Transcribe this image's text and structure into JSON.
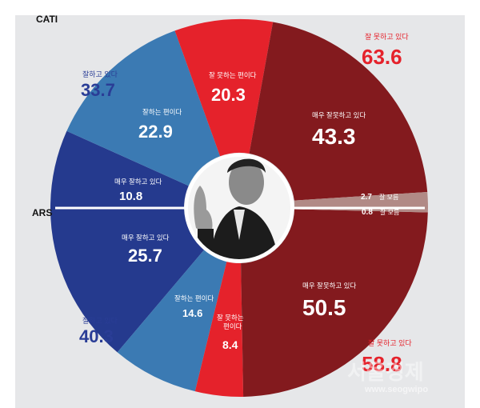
{
  "chart_data": {
    "type": "donut",
    "cati": {
      "label": "CATI",
      "segments": [
        {
          "name": "매우 잘하고 있다",
          "value": 10.8,
          "color": "#253a8e"
        },
        {
          "name": "잘하는 편이다",
          "value": 22.9,
          "color": "#3b7ab3"
        },
        {
          "name": "잘 못하는 편이다",
          "value": 20.3,
          "color": "#e5222b"
        },
        {
          "name": "매우 잘못하고 있다",
          "value": 43.3,
          "color": "#831a1e"
        },
        {
          "name": "잘 모름",
          "value": 2.7,
          "color": "#b18a86"
        }
      ],
      "positive_total": {
        "label": "잘하고 있다",
        "value": "33.7"
      },
      "negative_total": {
        "label": "잘 못하고 있다",
        "value": "63.6"
      }
    },
    "ars": {
      "label": "ARS",
      "segments": [
        {
          "name": "매우 잘하고 있다",
          "value": 25.7,
          "color": "#253a8e"
        },
        {
          "name": "잘하는 편이다",
          "value": 14.6,
          "color": "#3b7ab3"
        },
        {
          "name": "잘 못하는 편이다",
          "value": 8.4,
          "color": "#e5222b"
        },
        {
          "name": "매우 잘못하고 있다",
          "value": 50.5,
          "color": "#831a1e"
        },
        {
          "name": "잘 모름",
          "value": 0.8,
          "color": "#b18a86"
        }
      ],
      "positive_total": {
        "label": "잘하고 있다",
        "value": "40.3"
      },
      "negative_total": {
        "label": "잘 못하고 있다",
        "value": "58.8"
      }
    }
  },
  "labels": {
    "cati": "CATI",
    "ars": "ARS",
    "cati_pos_label": "잘하고 있다",
    "cati_pos_value": "33.7",
    "cati_neg_label": "잘 못하고 있다",
    "cati_neg_value": "63.6",
    "ars_pos_label": "잘하고 있다",
    "ars_pos_value": "40.3",
    "ars_neg_label": "잘 못하고 있다",
    "ars_neg_value": "58.8",
    "cati_seg_very_good": "매우 잘하고 있다",
    "cati_seg_very_good_val": "10.8",
    "cati_seg_good": "잘하는 편이다",
    "cati_seg_good_val": "22.9",
    "cati_seg_bad": "잘 못하는 편이다",
    "cati_seg_bad_val": "20.3",
    "cati_seg_very_bad": "매우 잘못하고 있다",
    "cati_seg_very_bad_val": "43.3",
    "cati_seg_unknown_val": "2.7",
    "cati_seg_unknown": "잘 모름",
    "ars_seg_very_good": "매우 잘하고 있다",
    "ars_seg_very_good_val": "25.7",
    "ars_seg_good": "잘하는 편이다",
    "ars_seg_good_val": "14.6",
    "ars_seg_bad_l1": "잘 못하는",
    "ars_seg_bad_l2": "편이다",
    "ars_seg_bad_val": "8.4",
    "ars_seg_very_bad": "매우 잘못하고 있다",
    "ars_seg_very_bad_val": "50.5",
    "ars_seg_unknown_val": "0.8",
    "ars_seg_unknown": "잘 모름",
    "watermark": "서울경제",
    "watermark_url": "www.seogwipo"
  }
}
